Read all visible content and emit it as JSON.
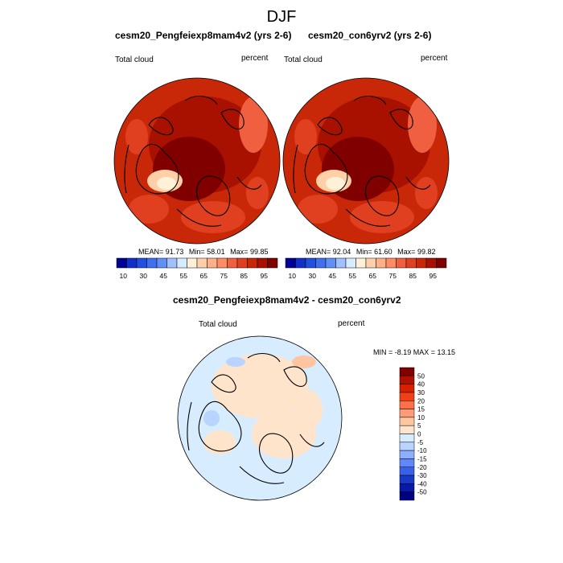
{
  "figure": {
    "title": "DJF"
  },
  "chart_data": [
    {
      "type": "heatmap",
      "projection": "north-polar-stereographic",
      "title": "cesm20_Pengfeiexp8mam4v2 (yrs 2-6)",
      "left_label": "Total cloud",
      "units": "percent",
      "stats": {
        "mean_label": "MEAN=",
        "mean": "91.73",
        "min_label": "Min=",
        "min": "58.01",
        "max_label": "Max=",
        "max": "99.85"
      },
      "colorbar": {
        "orientation": "horizontal",
        "tick_labels": [
          "10",
          "30",
          "45",
          "55",
          "65",
          "75",
          "85",
          "95"
        ],
        "colors": [
          "#000096",
          "#1030c8",
          "#2050e0",
          "#4070f0",
          "#6090f5",
          "#a0c0ff",
          "#d8ecff",
          "#fff0d8",
          "#ffd0a8",
          "#ffb088",
          "#ff8c64",
          "#f06040",
          "#e04020",
          "#c82808",
          "#a81000",
          "#800000"
        ]
      },
      "dominant_value_range": [
        85,
        100
      ]
    },
    {
      "type": "heatmap",
      "projection": "north-polar-stereographic",
      "title": "cesm20_con6yrv2 (yrs 2-6)",
      "left_label": "Total cloud",
      "units": "percent",
      "stats": {
        "mean_label": "MEAN=",
        "mean": "92.04",
        "min_label": "Min=",
        "min": "61.60",
        "max_label": "Max=",
        "max": "99.82"
      },
      "colorbar": {
        "orientation": "horizontal",
        "tick_labels": [
          "10",
          "30",
          "45",
          "55",
          "65",
          "75",
          "85",
          "95"
        ],
        "colors": [
          "#000096",
          "#1030c8",
          "#2050e0",
          "#4070f0",
          "#6090f5",
          "#a0c0ff",
          "#d8ecff",
          "#fff0d8",
          "#ffd0a8",
          "#ffb088",
          "#ff8c64",
          "#f06040",
          "#e04020",
          "#c82808",
          "#a81000",
          "#800000"
        ]
      },
      "dominant_value_range": [
        85,
        100
      ]
    },
    {
      "type": "heatmap",
      "projection": "north-polar-stereographic",
      "title": "cesm20_Pengfeiexp8mam4v2 - cesm20_con6yrv2",
      "left_label": "Total cloud",
      "units": "percent",
      "stats": {
        "text": "MIN =  -8.19 MAX =  13.15",
        "min": -8.19,
        "max": 13.15
      },
      "colorbar": {
        "orientation": "vertical",
        "tick_labels": [
          "50",
          "40",
          "30",
          "20",
          "15",
          "10",
          "5",
          "0",
          "-5",
          "-10",
          "-15",
          "-20",
          "-30",
          "-40",
          "-50"
        ],
        "colors": [
          "#800000",
          "#b01000",
          "#d82000",
          "#f04018",
          "#ff7048",
          "#ff9c78",
          "#ffc4a0",
          "#ffe4cc",
          "#d8ecff",
          "#b8d4ff",
          "#8cb0ff",
          "#6088f8",
          "#3860e8",
          "#1838c8",
          "#0818a8",
          "#000080"
        ]
      },
      "dominant_value_range": [
        -5,
        5
      ]
    }
  ]
}
